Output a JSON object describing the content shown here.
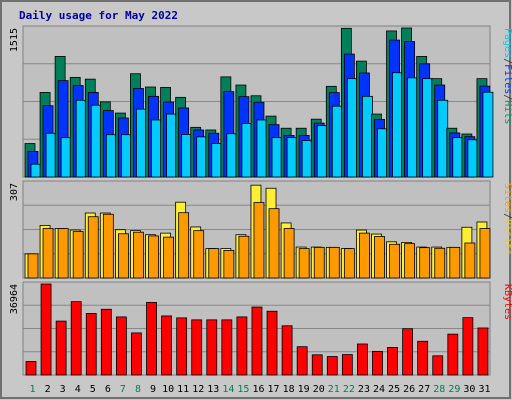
{
  "chart_data": {
    "type": "bar",
    "title": "Daily usage for May 2022",
    "x": [
      "1",
      "2",
      "3",
      "4",
      "5",
      "6",
      "7",
      "8",
      "9",
      "10",
      "11",
      "12",
      "13",
      "14",
      "15",
      "16",
      "17",
      "18",
      "19",
      "20",
      "21",
      "22",
      "23",
      "24",
      "25",
      "26",
      "27",
      "28",
      "29",
      "30",
      "31"
    ],
    "weekend_days": [
      "1",
      "7",
      "8",
      "14",
      "15",
      "21",
      "22",
      "28",
      "29"
    ],
    "panels": [
      {
        "id": "hits-panel",
        "ymax": 1515,
        "ylabel_parts": [
          "Pages",
          "/",
          "Files",
          "/",
          "Hits"
        ],
        "ylabel_colors": [
          "#00ccff",
          "#333333",
          "#0033ff",
          "#333333",
          "#009966"
        ],
        "series": [
          {
            "name": "Hits",
            "color": "#00805a",
            "values": [
              340,
              860,
              1226,
              1013,
              995,
              764,
              650,
              1050,
              915,
              911,
              810,
              505,
              478,
              1018,
              935,
              826,
              619,
              496,
              496,
              588,
              922,
              1512,
              1178,
              640,
              1485,
              1516,
              1226,
              1000,
              496,
              437,
              1000
            ]
          },
          {
            "name": "Files",
            "color": "#0033ff",
            "values": [
              260,
              725,
              980,
              930,
              860,
              675,
              600,
              900,
              820,
              762,
              702,
              478,
              445,
              868,
              817,
              760,
              532,
              423,
              423,
              548,
              858,
              1250,
              1058,
              586,
              1392,
              1377,
              1151,
              935,
              448,
              410,
              924
            ]
          },
          {
            "name": "Pages",
            "color": "#00ccff",
            "values": [
              130,
              445,
              400,
              780,
              730,
              430,
              430,
              690,
              580,
              640,
              432,
              408,
              340,
              440,
              545,
              580,
              400,
              400,
              370,
              522,
              720,
              1000,
              820,
              490,
              1060,
              1008,
              1000,
              780,
              400,
              378,
              862
            ]
          }
        ]
      },
      {
        "id": "visits-panel",
        "ymax": 307,
        "ylabel_parts": [
          "Sites",
          "/",
          "Visits"
        ],
        "ylabel_colors": [
          "#ff9900",
          "#333333",
          "#ffcc00"
        ],
        "series": [
          {
            "name": "Visits",
            "color": "#ffee33",
            "values": [
              78,
              170,
              160,
              155,
              210,
              210,
              156,
              153,
              140,
              145,
              245,
              165,
              95,
              95,
              140,
              300,
              290,
              178,
              100,
              100,
              99,
              95,
              155,
              142,
              117,
              115,
              100,
              100,
              99,
              164,
              181
            ]
          },
          {
            "name": "Sites",
            "color": "#ff9900",
            "values": [
              78,
              160,
              160,
              150,
              198,
              206,
              143,
              148,
              136,
              132,
              211,
              153,
              95,
              89,
              135,
              244,
              224,
              160,
              95,
              99,
              99,
              95,
              145,
              134,
              109,
              111,
              98,
              96,
              99,
              113,
              160
            ]
          }
        ]
      },
      {
        "id": "kbytes-panel",
        "ymax": 36964,
        "ylabel_parts": [
          "KBytes"
        ],
        "ylabel_colors": [
          "#ff0000"
        ],
        "series": [
          {
            "name": "KBytes",
            "color": "#ff0000",
            "values": [
              5500,
              36960,
              21900,
              29800,
              25000,
              26700,
              23600,
              17100,
              29500,
              24000,
              23200,
              22400,
              22400,
              22400,
              23600,
              27600,
              25900,
              20000,
              11500,
              8200,
              7500,
              8300,
              12600,
              9600,
              11200,
              18800,
              13700,
              7800,
              16600,
              23300,
              19100
            ]
          }
        ]
      }
    ]
  }
}
